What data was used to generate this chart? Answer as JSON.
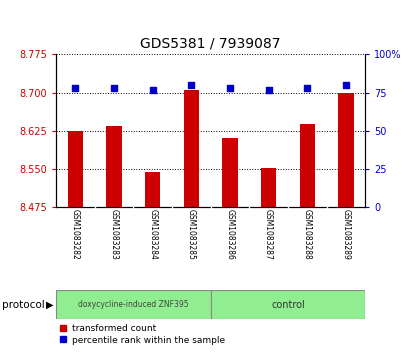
{
  "title": "GDS5381 / 7939087",
  "samples": [
    "GSM1083282",
    "GSM1083283",
    "GSM1083284",
    "GSM1083285",
    "GSM1083286",
    "GSM1083287",
    "GSM1083288",
    "GSM1083289"
  ],
  "bar_values": [
    8.625,
    8.635,
    8.543,
    8.705,
    8.61,
    8.552,
    8.638,
    8.7
  ],
  "percentile_values": [
    78,
    78,
    77,
    80,
    78,
    77,
    78,
    80
  ],
  "bar_bottom": 8.475,
  "ylim_left": [
    8.475,
    8.775
  ],
  "ylim_right": [
    0,
    100
  ],
  "yticks_left": [
    8.475,
    8.55,
    8.625,
    8.7,
    8.775
  ],
  "yticks_right": [
    0,
    25,
    50,
    75,
    100
  ],
  "bar_color": "#cc0000",
  "dot_color": "#0000cc",
  "group1_label": "doxycycline-induced ZNF395",
  "group2_label": "control",
  "group_color": "#90ee90",
  "group_border_color": "#888888",
  "protocol_label": "protocol",
  "legend_bar_label": "transformed count",
  "legend_dot_label": "percentile rank within the sample",
  "background_color": "#ffffff",
  "tick_area_color": "#cccccc",
  "title_fontsize": 10,
  "bar_width": 0.4
}
